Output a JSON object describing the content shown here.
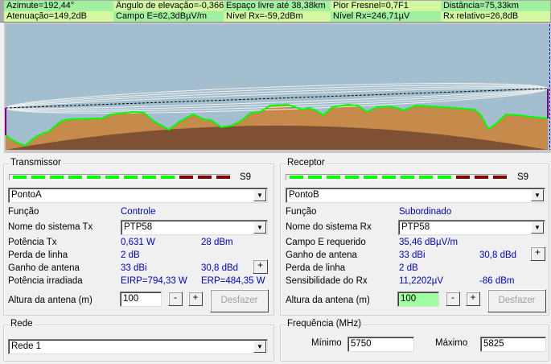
{
  "header": {
    "row1": [
      "Azimute=192,44°",
      "Ângulo de elevação=-0,366°",
      "Espaço livre até 38,38km",
      "Pior Fresnel=0,7F1",
      "Distância=75,33km"
    ],
    "row2": [
      "Atenuação=149,2dB",
      "Campo E=62,3dBµV/m",
      "Nível Rx=-59,2dBm",
      "Nível Rx=246,71µV",
      "Rx relativo=26,8dB"
    ]
  },
  "colors": {
    "sky": "#a3bfcf",
    "terrain": "#c68b4a",
    "earth": "#7f5033",
    "profile_line": "#00ff00",
    "meter_on": "#00ff00",
    "meter_high": "#800000",
    "value_text": "#0000c8",
    "rx_height_bg": "#a0ffa0"
  },
  "transmitter": {
    "title": "Transmissor",
    "meter_label": "S9",
    "meter_level": {
      "green": 9,
      "red": 3
    },
    "site": "PontoA",
    "function_label": "Função",
    "function_value": "Controle",
    "system_label": "Nome do sistema Tx",
    "system_value": "PTP58",
    "power_label": "Potência Tx",
    "power_w": "0,631 W",
    "power_dbm": "28 dBm",
    "loss_label": "Perda de linha",
    "loss_value": "2 dB",
    "gain_label": "Ganho de antena",
    "gain_dbi": "33 dBi",
    "gain_dbd": "30,8 dBd",
    "gain_btn": "+",
    "radiated_label": "Potência irradiada",
    "eirp": "EIRP=794,33 W",
    "erp": "ERP=484,35 W",
    "height_label": "Altura da antena (m)",
    "height_value": "100",
    "minus": "-",
    "plus": "+",
    "undo": "Desfazer"
  },
  "receiver": {
    "title": "Receptor",
    "meter_label": "S9",
    "meter_level": {
      "green": 9,
      "red": 3
    },
    "site": "PontoB",
    "function_label": "Função",
    "function_value": "Subordinado",
    "system_label": "Nome do sistema Rx",
    "system_value": "PTP58",
    "field_label": "Campo E requerido",
    "field_value": "35,46 dBµV/m",
    "gain_label": "Ganho de antena",
    "gain_dbi": "33 dBi",
    "gain_dbd": "30,8 dBd",
    "gain_btn": "+",
    "loss_label": "Perda de linha",
    "loss_value": "2 dB",
    "sens_label": "Sensibilidade do Rx",
    "sens_uv": "11,2202µV",
    "sens_dbm": "-86 dBm",
    "height_label": "Altura da antena (m)",
    "height_value": "100",
    "minus": "-",
    "plus": "+",
    "undo": "Desfazer"
  },
  "network": {
    "title": "Rede",
    "value": "Rede  1"
  },
  "frequency": {
    "title": "Frequência (MHz)",
    "min_label": "Mínimo",
    "min_value": "5750",
    "max_label": "Máximo",
    "max_value": "5825"
  }
}
